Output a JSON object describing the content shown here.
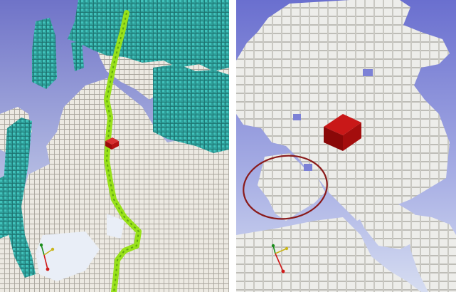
{
  "panels": [
    {
      "id": "left",
      "content": "3d-voxel-octomap-with-planned-path",
      "colors": {
        "sky_top": "#6f73c8",
        "sky_bottom": "#dfe6f3",
        "floor_voxel": "#ece9e2",
        "floor_edge": "#a9a59d",
        "obstacle_voxel": "#35b3ad",
        "obstacle_dark": "#1f7f7c",
        "path": "#9be21a",
        "robot": "#b20f0f"
      },
      "icons": [
        "axis-gizmo-icon",
        "robot-marker-icon"
      ]
    },
    {
      "id": "right",
      "content": "zoomed-floor-voxels-with-highlight-ring",
      "colors": {
        "sky_top": "#5a5fc4",
        "sky_bottom": "#d3dbf1",
        "floor_voxel": "#ededea",
        "floor_edge": "#9c9b95",
        "robot": "#a80d0d",
        "highlight_ring": "#8a1a1a"
      },
      "icons": [
        "axis-gizmo-icon",
        "robot-marker-icon",
        "highlight-ring-icon"
      ]
    }
  ]
}
